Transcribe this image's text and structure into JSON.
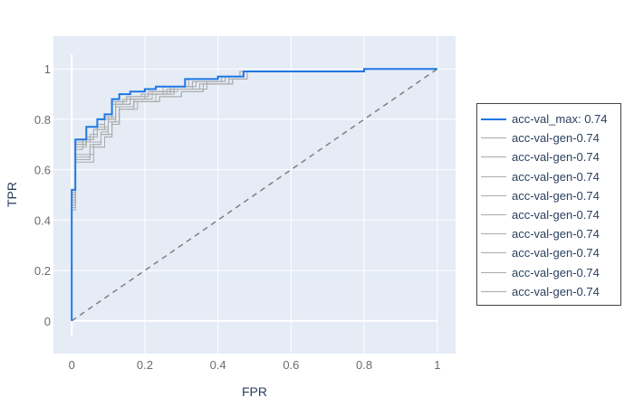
{
  "chart_data": {
    "type": "line",
    "xlabel": "FPR",
    "ylabel": "TPR",
    "xlim": [
      -0.05,
      1.05
    ],
    "ylim": [
      -0.13,
      1.13
    ],
    "xticks": [
      0,
      0.2,
      0.4,
      0.6,
      0.8,
      1
    ],
    "yticks": [
      0,
      0.2,
      0.4,
      0.6,
      0.8,
      1
    ],
    "xtick_labels": [
      "0",
      "0.2",
      "0.4",
      "0.6",
      "0.8",
      "1"
    ],
    "ytick_labels": [
      "0",
      "0.2",
      "0.4",
      "0.6",
      "0.8",
      "1"
    ],
    "grid": true,
    "legend_position": "right",
    "plot_background": "#e5ecf6",
    "diagonal": {
      "x": [
        0,
        1
      ],
      "y": [
        0,
        1
      ],
      "color": "#7f7f7f",
      "dash": true
    },
    "series": [
      {
        "name": "acc-val_max: 0.74",
        "color": "#1f77e4",
        "width": 2,
        "x": [
          0,
          0,
          0.01,
          0.01,
          0.04,
          0.04,
          0.07,
          0.07,
          0.09,
          0.09,
          0.11,
          0.11,
          0.13,
          0.13,
          0.16,
          0.16,
          0.2,
          0.2,
          0.23,
          0.23,
          0.31,
          0.31,
          0.4,
          0.4,
          0.47,
          0.47,
          0.8,
          0.8,
          1
        ],
        "y": [
          0,
          0.52,
          0.52,
          0.72,
          0.72,
          0.77,
          0.77,
          0.8,
          0.8,
          0.82,
          0.82,
          0.88,
          0.88,
          0.9,
          0.9,
          0.91,
          0.91,
          0.92,
          0.92,
          0.93,
          0.93,
          0.96,
          0.96,
          0.97,
          0.97,
          0.99,
          0.99,
          1,
          1
        ]
      },
      {
        "name": "acc-val-gen-0.74",
        "color": "#aaaaaa",
        "width": 1,
        "x": [
          0,
          0,
          0.01,
          0.01,
          0.03,
          0.03,
          0.06,
          0.06,
          0.09,
          0.09,
          0.11,
          0.11,
          0.14,
          0.14,
          0.2,
          0.2,
          0.26,
          0.26,
          0.33,
          0.33,
          0.42,
          0.42,
          0.47,
          0.47,
          0.8,
          0.8,
          1
        ],
        "y": [
          0,
          0.48,
          0.48,
          0.68,
          0.68,
          0.72,
          0.72,
          0.76,
          0.76,
          0.8,
          0.8,
          0.86,
          0.86,
          0.88,
          0.88,
          0.9,
          0.9,
          0.92,
          0.92,
          0.95,
          0.95,
          0.97,
          0.97,
          0.99,
          0.99,
          1,
          1
        ]
      },
      {
        "name": "acc-val-gen-0.74",
        "color": "#aaaaaa",
        "width": 1,
        "x": [
          0,
          0,
          0.01,
          0.01,
          0.05,
          0.05,
          0.08,
          0.08,
          0.1,
          0.1,
          0.12,
          0.12,
          0.17,
          0.17,
          0.22,
          0.22,
          0.27,
          0.27,
          0.35,
          0.35,
          0.43,
          0.43,
          0.47,
          0.47,
          0.8,
          0.8,
          1
        ],
        "y": [
          0,
          0.44,
          0.44,
          0.65,
          0.65,
          0.7,
          0.7,
          0.74,
          0.74,
          0.79,
          0.79,
          0.85,
          0.85,
          0.88,
          0.88,
          0.9,
          0.9,
          0.92,
          0.92,
          0.94,
          0.94,
          0.97,
          0.97,
          0.99,
          0.99,
          1,
          1
        ]
      },
      {
        "name": "acc-val-gen-0.74",
        "color": "#aaaaaa",
        "width": 1,
        "x": [
          0,
          0,
          0.01,
          0.01,
          0.04,
          0.04,
          0.07,
          0.07,
          0.1,
          0.1,
          0.12,
          0.12,
          0.15,
          0.15,
          0.21,
          0.21,
          0.28,
          0.28,
          0.34,
          0.34,
          0.41,
          0.41,
          0.46,
          0.46,
          0.8,
          0.8,
          1
        ],
        "y": [
          0,
          0.5,
          0.5,
          0.7,
          0.7,
          0.73,
          0.73,
          0.77,
          0.77,
          0.81,
          0.81,
          0.87,
          0.87,
          0.89,
          0.89,
          0.91,
          0.91,
          0.93,
          0.93,
          0.95,
          0.95,
          0.97,
          0.97,
          0.99,
          0.99,
          1,
          1
        ]
      },
      {
        "name": "acc-val-gen-0.74",
        "color": "#aaaaaa",
        "width": 1,
        "x": [
          0,
          0,
          0.01,
          0.01,
          0.06,
          0.06,
          0.09,
          0.09,
          0.11,
          0.11,
          0.13,
          0.13,
          0.18,
          0.18,
          0.24,
          0.24,
          0.3,
          0.3,
          0.36,
          0.36,
          0.44,
          0.44,
          0.48,
          0.48,
          0.8,
          0.8,
          1
        ],
        "y": [
          0,
          0.46,
          0.46,
          0.63,
          0.63,
          0.69,
          0.69,
          0.73,
          0.73,
          0.78,
          0.78,
          0.84,
          0.84,
          0.87,
          0.87,
          0.89,
          0.89,
          0.91,
          0.91,
          0.94,
          0.94,
          0.96,
          0.96,
          0.99,
          0.99,
          1,
          1
        ]
      },
      {
        "name": "acc-val-gen-0.74",
        "color": "#aaaaaa",
        "width": 1,
        "x": [
          0,
          0,
          0.01,
          0.01,
          0.04,
          0.04,
          0.08,
          0.08,
          0.1,
          0.1,
          0.12,
          0.12,
          0.16,
          0.16,
          0.22,
          0.22,
          0.29,
          0.29,
          0.37,
          0.37,
          0.42,
          0.42,
          0.47,
          0.47,
          0.8,
          0.8,
          1
        ],
        "y": [
          0,
          0.49,
          0.49,
          0.69,
          0.69,
          0.71,
          0.71,
          0.75,
          0.75,
          0.8,
          0.8,
          0.86,
          0.86,
          0.88,
          0.88,
          0.91,
          0.91,
          0.92,
          0.92,
          0.95,
          0.95,
          0.97,
          0.97,
          0.99,
          0.99,
          1,
          1
        ]
      },
      {
        "name": "acc-val-gen-0.74",
        "color": "#aaaaaa",
        "width": 1,
        "x": [
          0,
          0,
          0.01,
          0.01,
          0.05,
          0.05,
          0.07,
          0.07,
          0.09,
          0.09,
          0.11,
          0.11,
          0.15,
          0.15,
          0.19,
          0.19,
          0.25,
          0.25,
          0.32,
          0.32,
          0.4,
          0.4,
          0.46,
          0.46,
          0.8,
          0.8,
          1
        ],
        "y": [
          0,
          0.51,
          0.51,
          0.71,
          0.71,
          0.74,
          0.74,
          0.78,
          0.78,
          0.81,
          0.81,
          0.87,
          0.87,
          0.89,
          0.89,
          0.9,
          0.9,
          0.93,
          0.93,
          0.96,
          0.96,
          0.97,
          0.97,
          0.99,
          0.99,
          1,
          1
        ]
      },
      {
        "name": "acc-val-gen-0.74",
        "color": "#aaaaaa",
        "width": 1,
        "x": [
          0,
          0,
          0.01,
          0.01,
          0.06,
          0.06,
          0.08,
          0.08,
          0.11,
          0.11,
          0.13,
          0.13,
          0.17,
          0.17,
          0.23,
          0.23,
          0.28,
          0.28,
          0.35,
          0.35,
          0.43,
          0.43,
          0.48,
          0.48,
          0.8,
          0.8,
          1
        ],
        "y": [
          0,
          0.47,
          0.47,
          0.66,
          0.66,
          0.7,
          0.7,
          0.74,
          0.74,
          0.79,
          0.79,
          0.85,
          0.85,
          0.87,
          0.87,
          0.9,
          0.9,
          0.92,
          0.92,
          0.94,
          0.94,
          0.96,
          0.96,
          0.99,
          0.99,
          1,
          1
        ]
      },
      {
        "name": "acc-val-gen-0.74",
        "color": "#aaaaaa",
        "width": 1,
        "x": [
          0,
          0,
          0.01,
          0.01,
          0.04,
          0.04,
          0.06,
          0.06,
          0.1,
          0.1,
          0.12,
          0.12,
          0.16,
          0.16,
          0.21,
          0.21,
          0.27,
          0.27,
          0.33,
          0.33,
          0.41,
          0.41,
          0.47,
          0.47,
          0.8,
          0.8,
          1
        ],
        "y": [
          0,
          0.5,
          0.5,
          0.7,
          0.7,
          0.72,
          0.72,
          0.76,
          0.76,
          0.8,
          0.8,
          0.86,
          0.86,
          0.89,
          0.89,
          0.91,
          0.91,
          0.93,
          0.93,
          0.95,
          0.95,
          0.97,
          0.97,
          0.99,
          0.99,
          1,
          1
        ]
      },
      {
        "name": "acc-val-gen-0.74",
        "color": "#aaaaaa",
        "width": 1,
        "x": [
          0,
          0,
          0.01,
          0.01,
          0.05,
          0.05,
          0.09,
          0.09,
          0.11,
          0.11,
          0.13,
          0.13,
          0.17,
          0.17,
          0.24,
          0.24,
          0.3,
          0.3,
          0.36,
          0.36,
          0.44,
          0.44,
          0.48,
          0.48,
          0.8,
          0.8,
          1
        ],
        "y": [
          0,
          0.45,
          0.45,
          0.64,
          0.64,
          0.69,
          0.69,
          0.73,
          0.73,
          0.78,
          0.78,
          0.84,
          0.84,
          0.87,
          0.87,
          0.89,
          0.89,
          0.91,
          0.91,
          0.94,
          0.94,
          0.96,
          0.96,
          0.99,
          0.99,
          1,
          1
        ]
      }
    ]
  }
}
